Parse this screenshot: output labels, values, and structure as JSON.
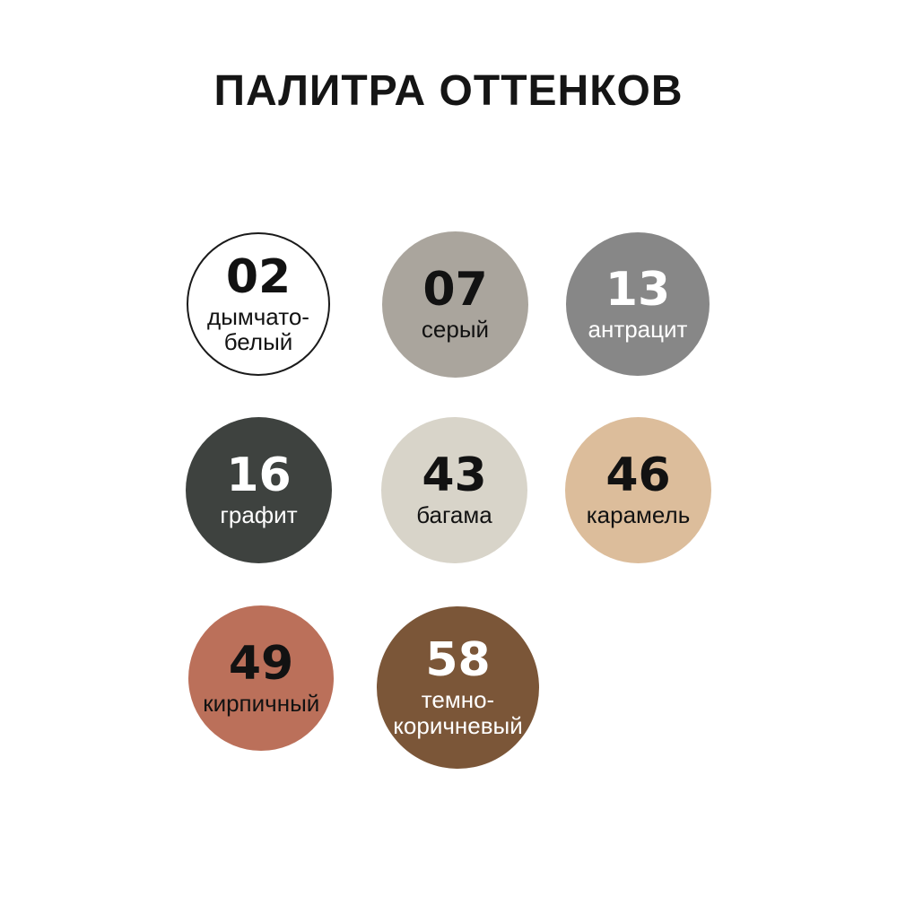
{
  "title": "ПАЛИТРА ОТТЕНКОВ",
  "colors": {
    "background": "#ffffff",
    "title_text": "#151515"
  },
  "swatches": [
    {
      "number": "02",
      "name": "дымчато-белый",
      "fill": "#ffffff",
      "text_color": "#121212",
      "border_color": "#1a1a1a"
    },
    {
      "number": "07",
      "name": "серый",
      "fill": "#aaa59d",
      "text_color": "#121212"
    },
    {
      "number": "13",
      "name": "антрацит",
      "fill": "#878787",
      "text_color": "#ffffff"
    },
    {
      "number": "16",
      "name": "графит",
      "fill": "#3e423f",
      "text_color": "#ffffff"
    },
    {
      "number": "43",
      "name": "багама",
      "fill": "#d8d4c9",
      "text_color": "#121212"
    },
    {
      "number": "46",
      "name": "карамель",
      "fill": "#dcbd9b",
      "text_color": "#121212"
    },
    {
      "number": "49",
      "name": "кирпичный",
      "fill": "#bb705a",
      "text_color": "#121212"
    },
    {
      "number": "58",
      "name": "темно-коричневый",
      "fill": "#7b5638",
      "text_color": "#ffffff"
    }
  ]
}
